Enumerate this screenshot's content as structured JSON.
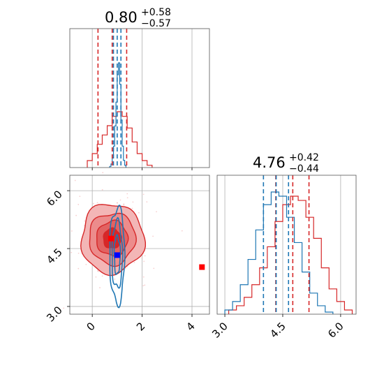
{
  "chart_data": {
    "type": "corner",
    "parameters": [
      {
        "id": "p0",
        "xlim": [
          -0.9,
          4.7
        ],
        "ticks": [
          0,
          2,
          4
        ],
        "tick_labels": [
          "0",
          "2",
          "4"
        ]
      },
      {
        "id": "p1",
        "xlim": [
          2.8,
          6.4
        ],
        "ticks": [
          3.0,
          4.5,
          6.0
        ],
        "tick_labels": [
          "3.0",
          "4.5",
          "6.0"
        ]
      }
    ],
    "titles": [
      {
        "value": "0.80",
        "plus": "+0.58",
        "minus": "−0.57"
      },
      {
        "value": "4.76",
        "plus": "+0.42",
        "minus": "−0.44"
      }
    ],
    "colors": {
      "red": "#d62728",
      "blue": "#1f77b4",
      "red_marker": "#ff0000",
      "blue_marker": "#0000ff"
    },
    "grid": true,
    "diag_0": {
      "red_quantile_lines": [
        0.23,
        0.8,
        1.38
      ],
      "blue_quantile_lines": [
        0.85,
        1.0,
        1.15
      ],
      "red_hist": {
        "bins": [
          -0.2,
          0.0,
          0.2,
          0.4,
          0.6,
          0.8,
          1.0,
          1.2,
          1.4,
          1.6,
          1.8,
          2.0,
          2.2,
          2.4
        ],
        "counts": [
          3,
          6,
          10,
          14,
          18,
          22,
          24,
          22,
          17,
          11,
          6,
          3,
          1
        ]
      },
      "blue_hist": {
        "bins": [
          0.7,
          0.75,
          0.8,
          0.85,
          0.9,
          0.95,
          1.0,
          1.05,
          1.1,
          1.15,
          1.2,
          1.25,
          1.3,
          1.35
        ],
        "counts": [
          1,
          3,
          8,
          18,
          35,
          55,
          78,
          88,
          70,
          40,
          18,
          6,
          2
        ]
      }
    },
    "diag_1": {
      "red_quantile_lines": [
        4.32,
        4.76,
        5.18
      ],
      "blue_quantile_lines": [
        4.0,
        4.33,
        4.65
      ],
      "red_hist": {
        "bins": [
          3.1,
          3.3,
          3.5,
          3.7,
          3.9,
          4.1,
          4.3,
          4.5,
          4.7,
          4.9,
          5.1,
          5.3,
          5.5,
          5.7,
          5.9,
          6.1,
          6.3
        ],
        "counts": [
          2,
          4,
          8,
          14,
          22,
          32,
          44,
          52,
          56,
          54,
          46,
          36,
          22,
          12,
          6,
          2
        ]
      },
      "blue_hist": {
        "bins": [
          3.0,
          3.2,
          3.4,
          3.6,
          3.8,
          4.0,
          4.2,
          4.4,
          4.6,
          4.8,
          5.0,
          5.2,
          5.4,
          5.6,
          5.8
        ],
        "counts": [
          2,
          6,
          14,
          26,
          40,
          52,
          58,
          56,
          46,
          34,
          20,
          10,
          4,
          1
        ]
      }
    },
    "joint": {
      "red_center": [
        0.8,
        4.76
      ],
      "red_sigma": [
        0.6,
        0.43
      ],
      "blue_center": [
        1.0,
        4.33
      ],
      "blue_sigma": [
        0.15,
        0.62
      ],
      "red_marker": [
        0.75,
        4.76
      ],
      "blue_marker": [
        1.0,
        4.33
      ],
      "outlier_marker": [
        4.4,
        4.02
      ]
    }
  }
}
